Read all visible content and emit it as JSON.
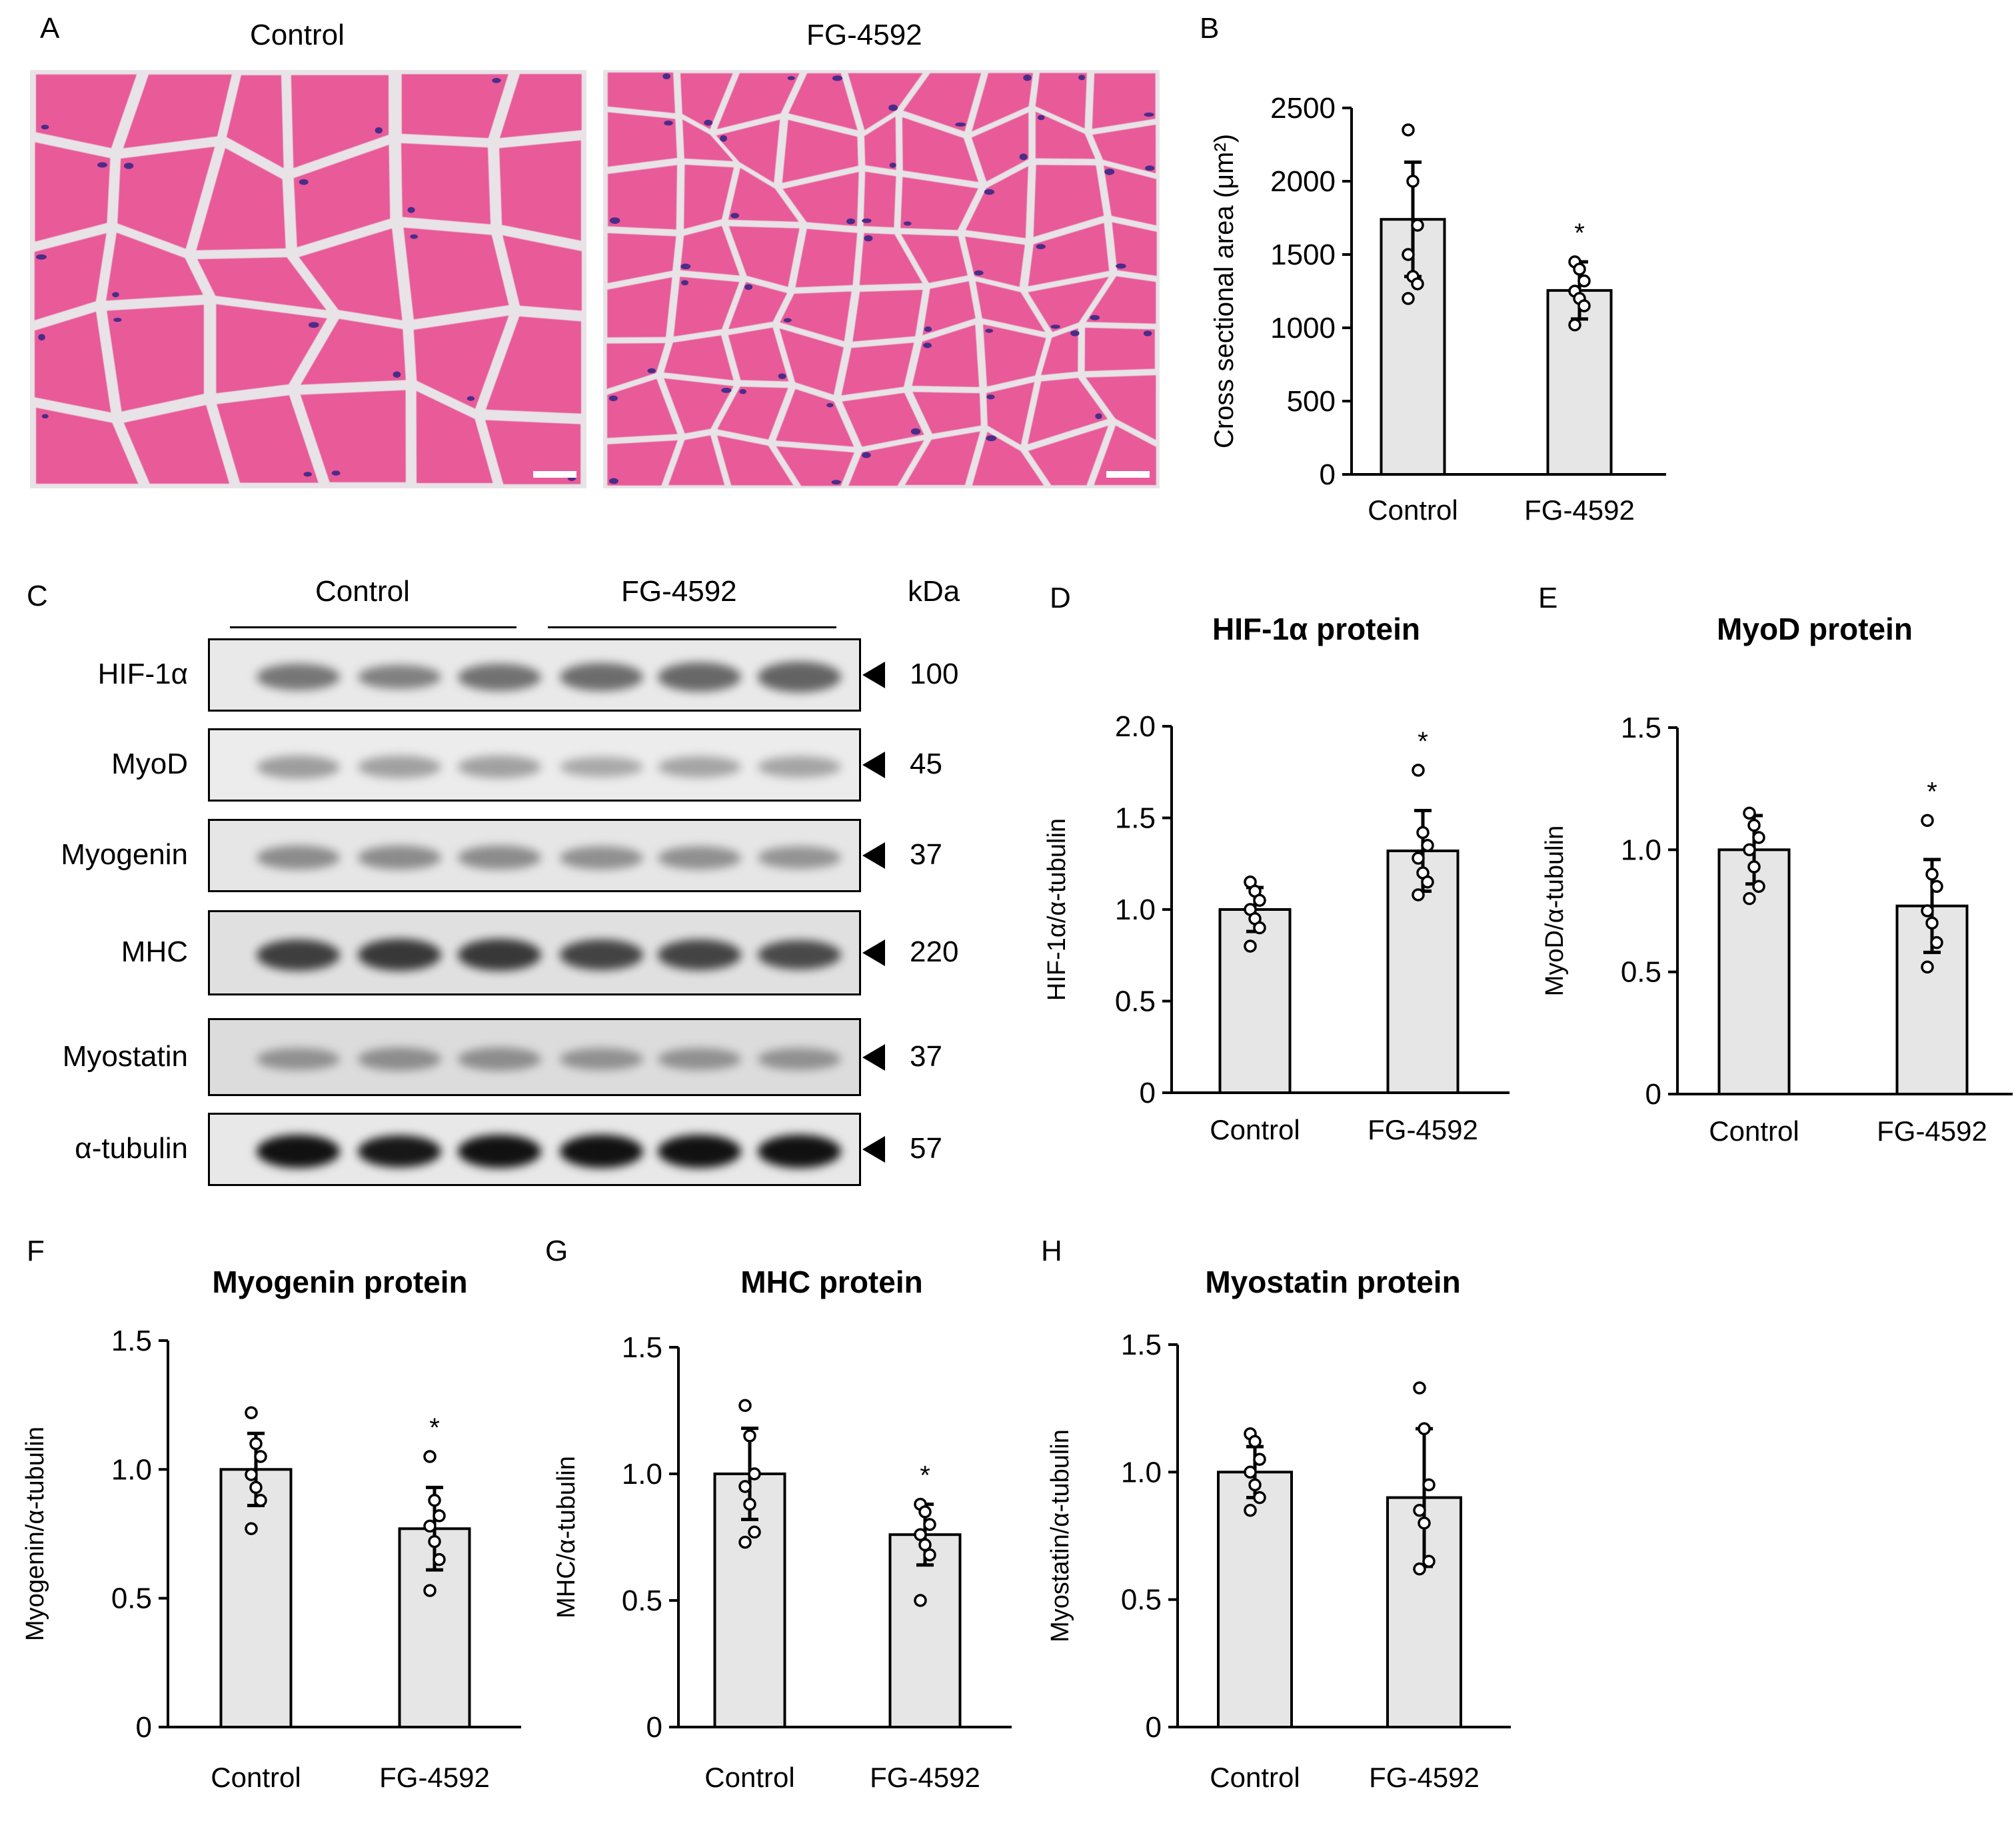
{
  "panels": {
    "A": {
      "letter": "A",
      "image_titles": [
        "Control",
        "FG-4592"
      ],
      "colors": {
        "fiber": "#e85a98",
        "gap": "#e8e3e6",
        "nucleus": "#4a2c8a"
      }
    },
    "B": {
      "letter": "B"
    },
    "C": {
      "letter": "C",
      "group_labels": [
        "Control",
        "FG-4592"
      ],
      "kda_header": "kDa",
      "rows": [
        {
          "protein": "HIF-1α",
          "kda": "100",
          "bg": "#e9e9e9",
          "band_color": "#555555",
          "intensities": [
            0.65,
            0.55,
            0.7,
            0.75,
            0.8,
            0.85
          ]
        },
        {
          "protein": "MyoD",
          "kda": "45",
          "bg": "#ececec",
          "band_color": "#777777",
          "intensities": [
            0.5,
            0.45,
            0.45,
            0.35,
            0.4,
            0.4
          ]
        },
        {
          "protein": "Myogenin",
          "kda": "37",
          "bg": "#e6e6e6",
          "band_color": "#666666",
          "intensities": [
            0.55,
            0.55,
            0.55,
            0.5,
            0.5,
            0.45
          ]
        },
        {
          "protein": "MHC",
          "kda": "220",
          "bg": "#e0e0e0",
          "band_color": "#333333",
          "intensities": [
            0.9,
            0.95,
            0.95,
            0.85,
            0.85,
            0.8
          ]
        },
        {
          "protein": "Myostatin",
          "kda": "37",
          "bg": "#dcdcdc",
          "band_color": "#666666",
          "intensities": [
            0.45,
            0.5,
            0.5,
            0.45,
            0.45,
            0.45
          ]
        },
        {
          "protein": "α-tubulin",
          "kda": "57",
          "bg": "#e8e8e8",
          "band_color": "#111111",
          "intensities": [
            1.0,
            0.95,
            1.0,
            1.0,
            1.0,
            1.0
          ]
        }
      ]
    },
    "D": {
      "letter": "D"
    },
    "E": {
      "letter": "E"
    },
    "F": {
      "letter": "F"
    },
    "G": {
      "letter": "G"
    },
    "H": {
      "letter": "H"
    }
  },
  "chart_data": [
    {
      "id": "B",
      "type": "bar",
      "title": "",
      "categories": [
        "Control",
        "FG-4592"
      ],
      "values": [
        1740,
        1255
      ],
      "errors": [
        390,
        195
      ],
      "ylabel": "Cross sectional area (μm²)",
      "ylim": [
        0,
        2500
      ],
      "yticks": [
        "0",
        "500",
        "1000",
        "1500",
        "2000",
        "2500"
      ],
      "tick_values": [
        0,
        500,
        1000,
        1500,
        2000,
        2500
      ],
      "significance": [
        "",
        "*"
      ],
      "points": [
        [
          2350,
          2000,
          1700,
          1500,
          1350,
          1300,
          1200
        ],
        [
          1450,
          1400,
          1320,
          1250,
          1200,
          1150,
          1020
        ]
      ]
    },
    {
      "id": "D",
      "type": "bar",
      "title": "HIF-1α protein",
      "categories": [
        "Control",
        "FG-4592"
      ],
      "values": [
        1.0,
        1.32
      ],
      "errors": [
        0.12,
        0.22
      ],
      "ylabel": "HIF-1α/α-tubulin",
      "ylim": [
        0,
        2.0
      ],
      "yticks": [
        "0",
        "0.5",
        "1.0",
        "1.5",
        "2.0"
      ],
      "tick_values": [
        0,
        0.5,
        1.0,
        1.5,
        2.0
      ],
      "significance": [
        "",
        "*"
      ],
      "points": [
        [
          1.15,
          1.1,
          1.05,
          1.0,
          0.95,
          0.9,
          0.8
        ],
        [
          1.76,
          1.42,
          1.35,
          1.28,
          1.2,
          1.15,
          1.08
        ]
      ]
    },
    {
      "id": "E",
      "type": "bar",
      "title": "MyoD protein",
      "categories": [
        "Control",
        "FG-4592"
      ],
      "values": [
        1.0,
        0.77
      ],
      "errors": [
        0.14,
        0.19
      ],
      "ylabel": "MyoD/α-tubulin",
      "ylim": [
        0,
        1.5
      ],
      "yticks": [
        "0",
        "0.5",
        "1.0",
        "1.5"
      ],
      "tick_values": [
        0,
        0.5,
        1.0,
        1.5
      ],
      "significance": [
        "",
        "*"
      ],
      "points": [
        [
          1.15,
          1.1,
          1.05,
          1.0,
          0.93,
          0.85,
          0.8
        ],
        [
          1.12,
          0.9,
          0.85,
          0.75,
          0.7,
          0.62,
          0.52
        ]
      ]
    },
    {
      "id": "F",
      "type": "bar",
      "title": "Myogenin protein",
      "categories": [
        "Control",
        "FG-4592"
      ],
      "values": [
        1.0,
        0.77
      ],
      "errors": [
        0.14,
        0.16
      ],
      "ylabel": "Myogenin/α-tubulin",
      "ylim": [
        0,
        1.5
      ],
      "yticks": [
        "0",
        "0.5",
        "1.0",
        "1.5"
      ],
      "tick_values": [
        0,
        0.5,
        1.0,
        1.5
      ],
      "significance": [
        "",
        "*"
      ],
      "points": [
        [
          1.22,
          1.1,
          1.05,
          0.98,
          0.93,
          0.88,
          0.77
        ],
        [
          1.05,
          0.88,
          0.82,
          0.78,
          0.72,
          0.65,
          0.53
        ]
      ]
    },
    {
      "id": "G",
      "type": "bar",
      "title": "MHC protein",
      "categories": [
        "Control",
        "FG-4592"
      ],
      "values": [
        1.0,
        0.76
      ],
      "errors": [
        0.18,
        0.12
      ],
      "ylabel": "MHC/α-tubulin",
      "ylim": [
        0,
        1.5
      ],
      "yticks": [
        "0",
        "0.5",
        "1.0",
        "1.5"
      ],
      "tick_values": [
        0,
        0.5,
        1.0,
        1.5
      ],
      "significance": [
        "",
        "*"
      ],
      "points": [
        [
          1.27,
          1.15,
          1.0,
          0.95,
          0.88,
          0.77,
          0.73
        ],
        [
          0.88,
          0.85,
          0.8,
          0.76,
          0.72,
          0.68,
          0.5
        ]
      ]
    },
    {
      "id": "H",
      "type": "bar",
      "title": "Myostatin protein",
      "categories": [
        "Control",
        "FG-4592"
      ],
      "values": [
        1.0,
        0.9
      ],
      "errors": [
        0.1,
        0.27
      ],
      "ylabel": "Myostatin/α-tubulin",
      "ylim": [
        0,
        1.5
      ],
      "yticks": [
        "0",
        "0.5",
        "1.0",
        "1.5"
      ],
      "tick_values": [
        0,
        0.5,
        1.0,
        1.5
      ],
      "significance": [
        "",
        ""
      ],
      "points": [
        [
          1.15,
          1.12,
          1.05,
          1.0,
          0.95,
          0.9,
          0.85
        ],
        [
          1.33,
          1.17,
          0.95,
          0.85,
          0.8,
          0.65,
          0.62
        ]
      ]
    }
  ]
}
